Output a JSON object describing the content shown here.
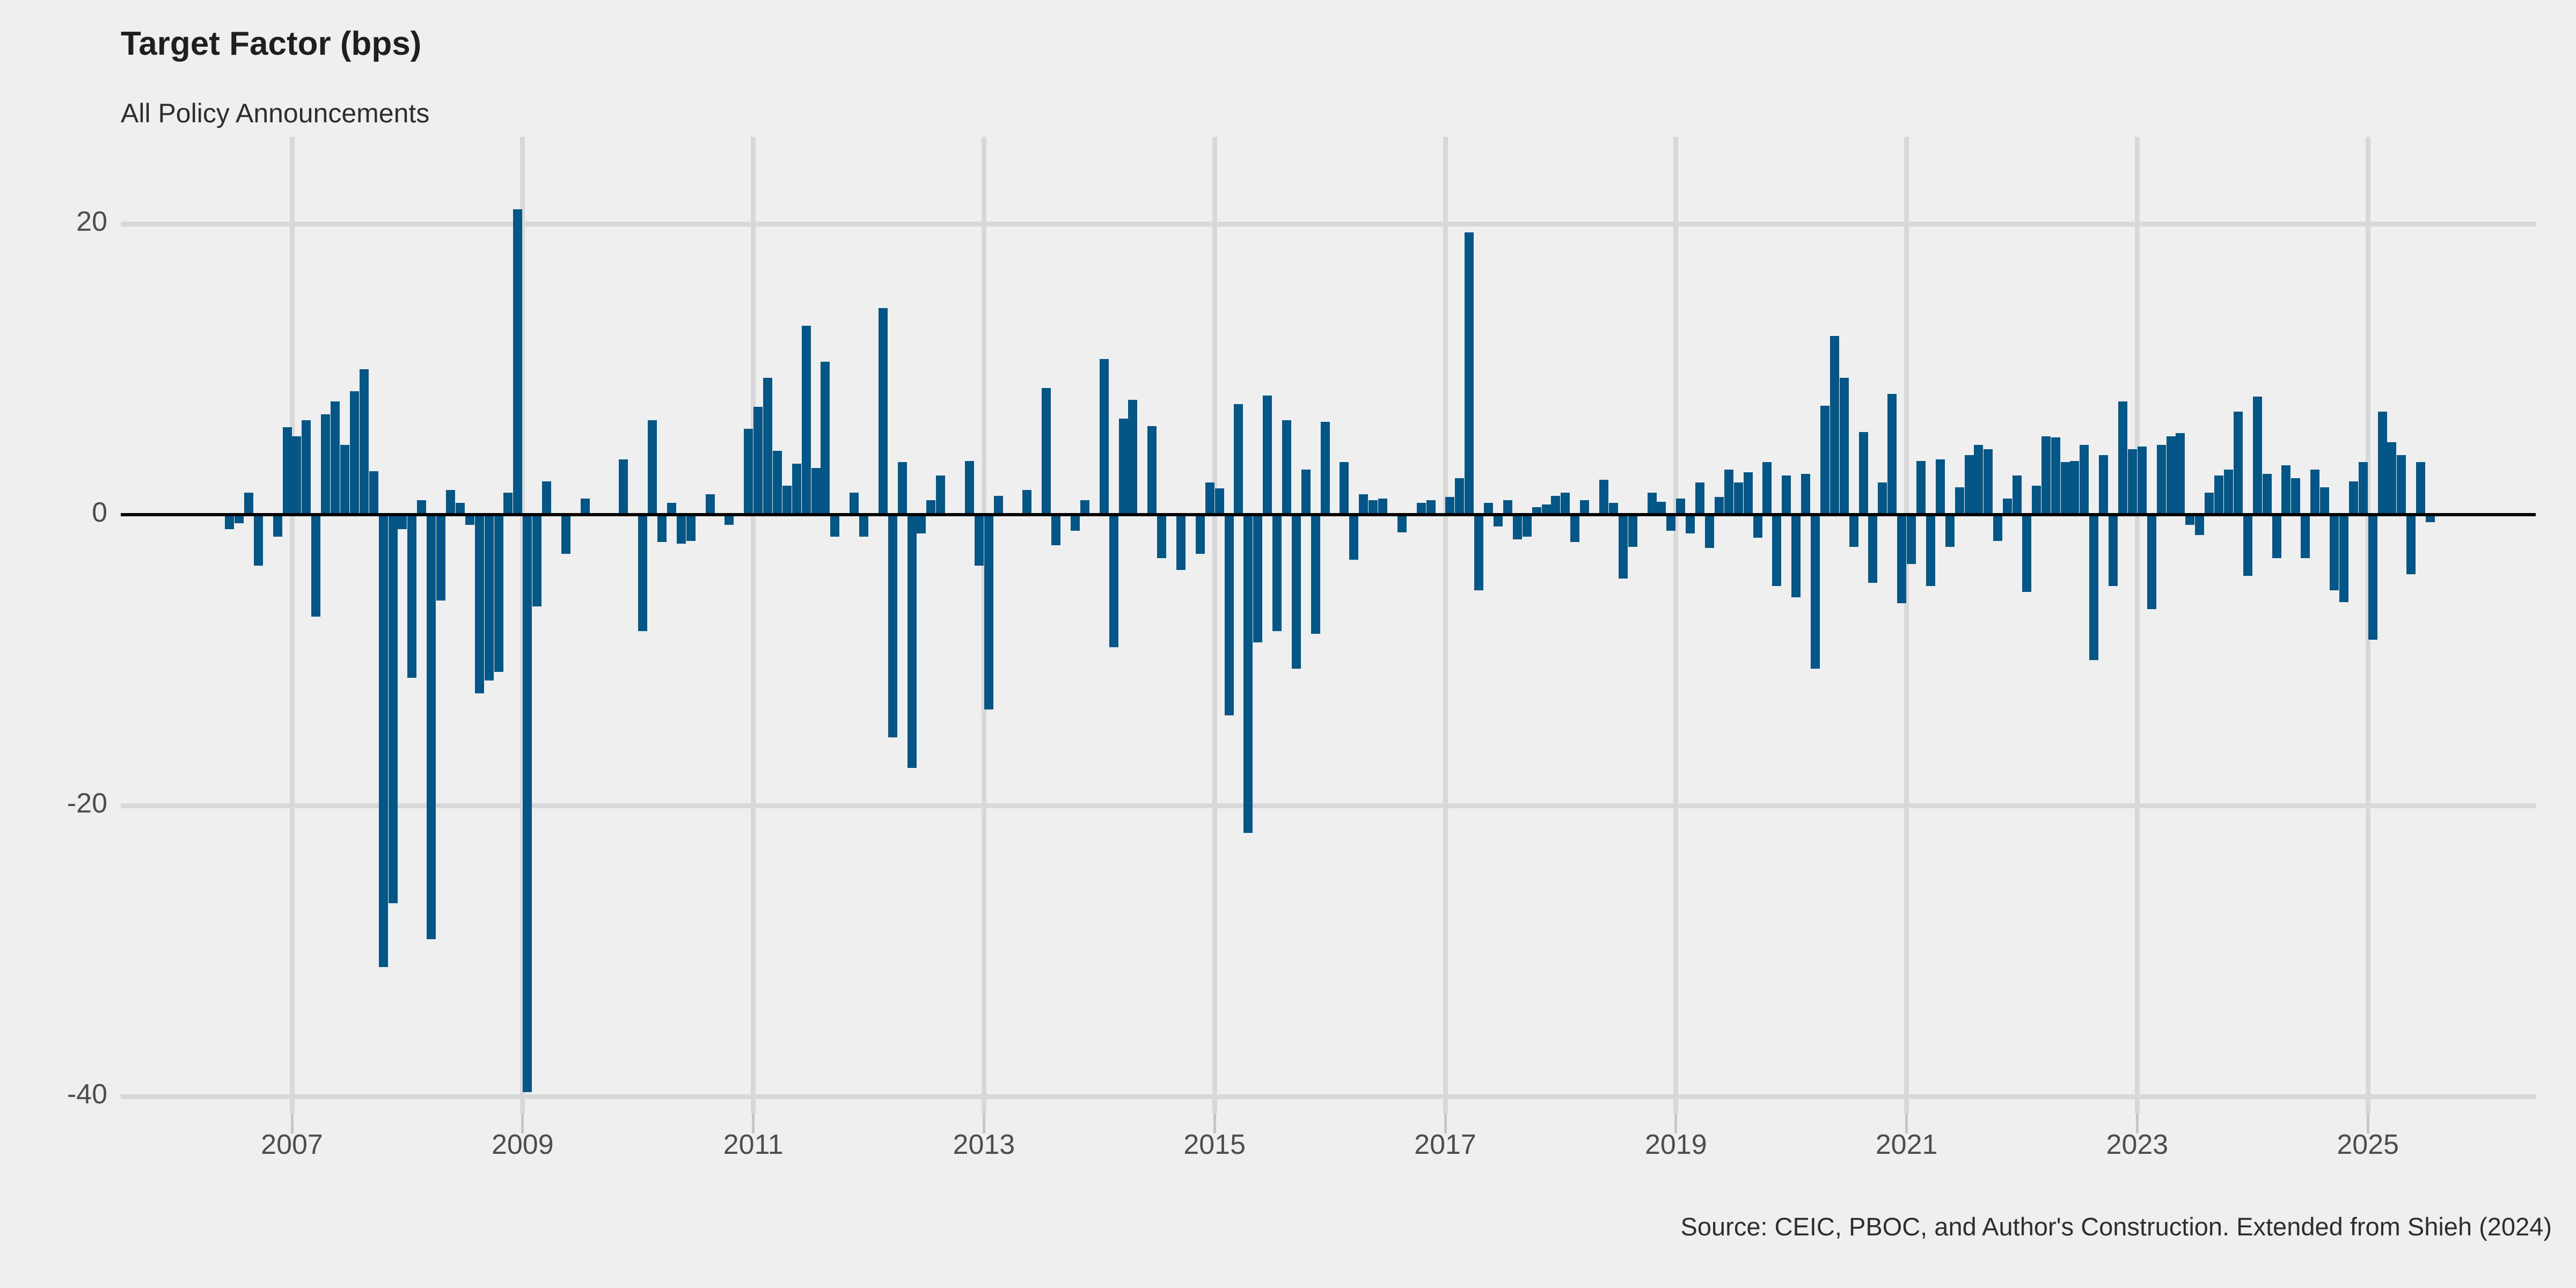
{
  "header": {
    "title": "Target Factor (bps)",
    "subtitle": "All Policy Announcements"
  },
  "footer": {
    "source": "Source: CEIC, PBOC, and Author's Construction. Extended from Shieh (2024)"
  },
  "colors": {
    "background": "#efefef",
    "bar": "#045687",
    "gridline": "#d8d8d8",
    "tick_mark": "#c6c6c6",
    "zero_line": "#000000",
    "axis_text": "#4d4d4d",
    "title_text": "#1f1f1f",
    "subtitle_text": "#2e2e2e",
    "source_text": "#2e2e2e"
  },
  "chart_data": {
    "type": "bar",
    "title": "Target Factor (bps)",
    "subtitle": "All Policy Announcements",
    "xlabel": "",
    "ylabel": "Target Factor (bps)",
    "grid": true,
    "legend": false,
    "ylim": [
      -41,
      26
    ],
    "xlim": [
      2005.5,
      2026.5
    ],
    "y_ticks": [
      20,
      0,
      -20,
      -40
    ],
    "x_ticks": [
      2007,
      2009,
      2011,
      2013,
      2015,
      2017,
      2019,
      2021,
      2023,
      2025
    ],
    "unit": "bps",
    "bars": [
      [
        "2006-06",
        -1.0
      ],
      [
        "2006-07",
        -0.6
      ],
      [
        "2006-08",
        1.5
      ],
      [
        "2006-09",
        -3.5
      ],
      [
        "2006-11",
        -1.5
      ],
      [
        "2006-12",
        6.0
      ],
      [
        "2007-01",
        5.4
      ],
      [
        "2007-02",
        6.5
      ],
      [
        "2007-03",
        -7.0
      ],
      [
        "2007-04",
        6.9
      ],
      [
        "2007-05",
        7.8
      ],
      [
        "2007-06",
        4.8
      ],
      [
        "2007-07",
        8.5
      ],
      [
        "2007-08",
        10.0
      ],
      [
        "2007-09",
        3.0
      ],
      [
        "2007-10",
        -31.1
      ],
      [
        "2007-11",
        -26.7
      ],
      [
        "2007-12",
        -1.0
      ],
      [
        "2008-01",
        -11.2
      ],
      [
        "2008-02",
        1.0
      ],
      [
        "2008-03",
        -29.2
      ],
      [
        "2008-04",
        -5.9
      ],
      [
        "2008-05",
        1.7
      ],
      [
        "2008-06",
        0.8
      ],
      [
        "2008-07",
        -0.7
      ],
      [
        "2008-08",
        -12.3
      ],
      [
        "2008-09",
        -11.4
      ],
      [
        "2008-10",
        -10.8
      ],
      [
        "2008-11",
        1.5
      ],
      [
        "2008-12",
        21.0
      ],
      [
        "2009-01",
        -39.7
      ],
      [
        "2009-02",
        -6.3
      ],
      [
        "2009-03",
        2.3
      ],
      [
        "2009-05",
        -2.7
      ],
      [
        "2009-07",
        1.1
      ],
      [
        "2009-11",
        3.8
      ],
      [
        "2010-01",
        -8.0
      ],
      [
        "2010-02",
        6.5
      ],
      [
        "2010-03",
        -1.9
      ],
      [
        "2010-04",
        0.8
      ],
      [
        "2010-05",
        -2.0
      ],
      [
        "2010-06",
        -1.8
      ],
      [
        "2010-08",
        1.4
      ],
      [
        "2010-10",
        -0.7
      ],
      [
        "2010-12",
        5.9
      ],
      [
        "2011-01",
        7.4
      ],
      [
        "2011-02",
        9.4
      ],
      [
        "2011-03",
        4.4
      ],
      [
        "2011-04",
        2.0
      ],
      [
        "2011-05",
        3.5
      ],
      [
        "2011-06",
        13.0
      ],
      [
        "2011-07",
        3.2
      ],
      [
        "2011-08",
        10.5
      ],
      [
        "2011-09",
        -1.5
      ],
      [
        "2011-11",
        1.5
      ],
      [
        "2011-12",
        -1.5
      ],
      [
        "2012-02",
        14.2
      ],
      [
        "2012-03",
        -15.3
      ],
      [
        "2012-04",
        3.6
      ],
      [
        "2012-05",
        -17.4
      ],
      [
        "2012-06",
        -1.3
      ],
      [
        "2012-07",
        1.0
      ],
      [
        "2012-08",
        2.7
      ],
      [
        "2012-11",
        3.7
      ],
      [
        "2012-12",
        -3.5
      ],
      [
        "2013-01",
        -13.4
      ],
      [
        "2013-02",
        1.3
      ],
      [
        "2013-05",
        1.7
      ],
      [
        "2013-07",
        8.7
      ],
      [
        "2013-08",
        -2.1
      ],
      [
        "2013-10",
        -1.1
      ],
      [
        "2013-11",
        1.0
      ],
      [
        "2014-01",
        10.7
      ],
      [
        "2014-02",
        -9.1
      ],
      [
        "2014-03",
        6.6
      ],
      [
        "2014-04",
        7.9
      ],
      [
        "2014-06",
        6.1
      ],
      [
        "2014-07",
        -3.0
      ],
      [
        "2014-09",
        -3.8
      ],
      [
        "2014-11",
        -2.7
      ],
      [
        "2014-12",
        2.2
      ],
      [
        "2015-01",
        1.8
      ],
      [
        "2015-02",
        -13.8
      ],
      [
        "2015-03",
        7.6
      ],
      [
        "2015-04",
        -21.9
      ],
      [
        "2015-05",
        -8.8
      ],
      [
        "2015-06",
        8.2
      ],
      [
        "2015-07",
        -8.0
      ],
      [
        "2015-08",
        6.5
      ],
      [
        "2015-09",
        -10.6
      ],
      [
        "2015-10",
        3.1
      ],
      [
        "2015-11",
        -8.2
      ],
      [
        "2015-12",
        6.4
      ],
      [
        "2016-02",
        3.6
      ],
      [
        "2016-03",
        -3.1
      ],
      [
        "2016-04",
        1.4
      ],
      [
        "2016-05",
        1.0
      ],
      [
        "2016-06",
        1.1
      ],
      [
        "2016-08",
        -1.2
      ],
      [
        "2016-10",
        0.8
      ],
      [
        "2016-11",
        1.0
      ],
      [
        "2017-01",
        1.2
      ],
      [
        "2017-02",
        2.5
      ],
      [
        "2017-03",
        19.4
      ],
      [
        "2017-04",
        -5.2
      ],
      [
        "2017-05",
        0.8
      ],
      [
        "2017-06",
        -0.8
      ],
      [
        "2017-07",
        1.0
      ],
      [
        "2017-08",
        -1.7
      ],
      [
        "2017-09",
        -1.5
      ],
      [
        "2017-10",
        0.5
      ],
      [
        "2017-11",
        0.7
      ],
      [
        "2017-12",
        1.3
      ],
      [
        "2018-01",
        1.5
      ],
      [
        "2018-02",
        -1.9
      ],
      [
        "2018-03",
        1.0
      ],
      [
        "2018-05",
        2.4
      ],
      [
        "2018-06",
        0.8
      ],
      [
        "2018-07",
        -4.4
      ],
      [
        "2018-08",
        -2.2
      ],
      [
        "2018-10",
        1.5
      ],
      [
        "2018-11",
        0.9
      ],
      [
        "2018-12",
        -1.1
      ],
      [
        "2019-01",
        1.1
      ],
      [
        "2019-02",
        -1.3
      ],
      [
        "2019-03",
        2.2
      ],
      [
        "2019-04",
        -2.3
      ],
      [
        "2019-05",
        1.2
      ],
      [
        "2019-06",
        3.1
      ],
      [
        "2019-07",
        2.2
      ],
      [
        "2019-08",
        2.9
      ],
      [
        "2019-09",
        -1.6
      ],
      [
        "2019-10",
        3.6
      ],
      [
        "2019-11",
        -4.9
      ],
      [
        "2019-12",
        2.7
      ],
      [
        "2020-01",
        -5.7
      ],
      [
        "2020-02",
        2.8
      ],
      [
        "2020-03",
        -10.6
      ],
      [
        "2020-04",
        7.5
      ],
      [
        "2020-05",
        12.3
      ],
      [
        "2020-06",
        9.4
      ],
      [
        "2020-07",
        -2.2
      ],
      [
        "2020-08",
        5.7
      ],
      [
        "2020-09",
        -4.7
      ],
      [
        "2020-10",
        2.2
      ],
      [
        "2020-11",
        8.3
      ],
      [
        "2020-12",
        -6.1
      ],
      [
        "2021-01",
        -3.4
      ],
      [
        "2021-02",
        3.7
      ],
      [
        "2021-03",
        -4.9
      ],
      [
        "2021-04",
        3.8
      ],
      [
        "2021-05",
        -2.2
      ],
      [
        "2021-06",
        1.9
      ],
      [
        "2021-07",
        4.1
      ],
      [
        "2021-08",
        4.8
      ],
      [
        "2021-09",
        4.5
      ],
      [
        "2021-10",
        -1.8
      ],
      [
        "2021-11",
        1.1
      ],
      [
        "2021-12",
        2.7
      ],
      [
        "2022-01",
        -5.3
      ],
      [
        "2022-02",
        2.0
      ],
      [
        "2022-03",
        5.4
      ],
      [
        "2022-04",
        5.3
      ],
      [
        "2022-05",
        3.6
      ],
      [
        "2022-06",
        3.7
      ],
      [
        "2022-07",
        4.8
      ],
      [
        "2022-08",
        -10.0
      ],
      [
        "2022-09",
        4.1
      ],
      [
        "2022-10",
        -4.9
      ],
      [
        "2022-11",
        7.8
      ],
      [
        "2022-12",
        4.5
      ],
      [
        "2023-01",
        4.7
      ],
      [
        "2023-02",
        -6.5
      ],
      [
        "2023-03",
        4.8
      ],
      [
        "2023-04",
        5.4
      ],
      [
        "2023-05",
        5.6
      ],
      [
        "2023-06",
        -0.7
      ],
      [
        "2023-07",
        -1.4
      ],
      [
        "2023-08",
        1.5
      ],
      [
        "2023-09",
        2.7
      ],
      [
        "2023-10",
        3.1
      ],
      [
        "2023-11",
        7.1
      ],
      [
        "2023-12",
        -4.2
      ],
      [
        "2024-01",
        8.1
      ],
      [
        "2024-02",
        2.8
      ],
      [
        "2024-03",
        -3.0
      ],
      [
        "2024-04",
        3.4
      ],
      [
        "2024-05",
        2.5
      ],
      [
        "2024-06",
        -3.0
      ],
      [
        "2024-07",
        3.1
      ],
      [
        "2024-08",
        1.9
      ],
      [
        "2024-09",
        -5.2
      ],
      [
        "2024-10",
        -6.0
      ],
      [
        "2024-11",
        2.3
      ],
      [
        "2024-12",
        3.6
      ],
      [
        "2025-01",
        -8.6
      ],
      [
        "2025-02",
        7.1
      ],
      [
        "2025-03",
        5.0
      ],
      [
        "2025-04",
        4.1
      ],
      [
        "2025-05",
        -4.1
      ],
      [
        "2025-06",
        3.6
      ],
      [
        "2025-07",
        -0.5
      ]
    ]
  }
}
